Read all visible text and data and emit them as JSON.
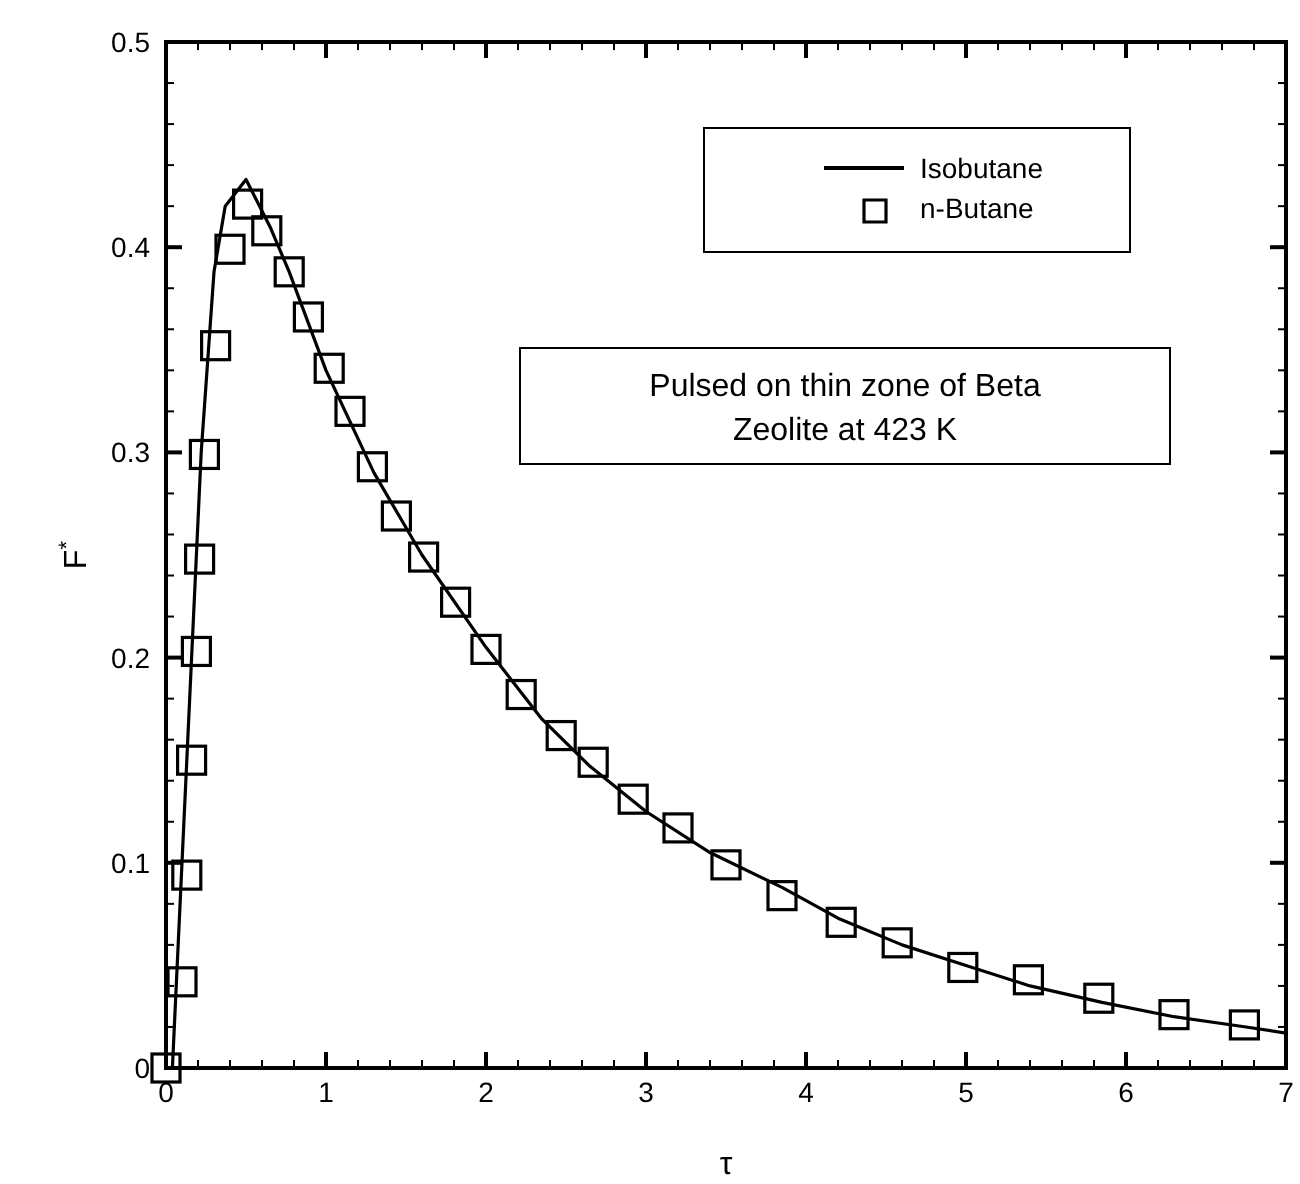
{
  "chart_data": {
    "type": "line",
    "xlabel": "τ",
    "ylabel": "F$^{*}$",
    "xlim": [
      0,
      7
    ],
    "ylim": [
      0,
      0.5
    ],
    "xticks": [
      0,
      {
        "value": 0.2,
        "label": null
      },
      {
        "value": 0.4,
        "label": null
      },
      {
        "value": 0.6,
        "label": null
      },
      {
        "value": 0.8,
        "label": null
      },
      1,
      {
        "value": 1.2,
        "label": null
      },
      {
        "value": 1.4,
        "label": null
      },
      {
        "value": 1.6,
        "label": null
      },
      {
        "value": 1.8,
        "label": null
      },
      2,
      {
        "value": 2.2,
        "label": null
      },
      {
        "value": 2.4,
        "label": null
      },
      {
        "value": 2.6,
        "label": null
      },
      {
        "value": 2.8,
        "label": null
      },
      3,
      {
        "value": 3.2,
        "label": null
      },
      {
        "value": 3.4,
        "label": null
      },
      {
        "value": 3.6,
        "label": null
      },
      {
        "value": 3.8,
        "label": null
      },
      4,
      {
        "value": 4.2,
        "label": null
      },
      {
        "value": 4.4,
        "label": null
      },
      {
        "value": 4.6,
        "label": null
      },
      {
        "value": 4.8,
        "label": null
      },
      5,
      {
        "value": 5.2,
        "label": null
      },
      {
        "value": 5.4,
        "label": null
      },
      {
        "value": 5.6,
        "label": null
      },
      {
        "value": 5.8,
        "label": null
      },
      6,
      {
        "value": 6.2,
        "label": null
      },
      {
        "value": 6.4,
        "label": null
      },
      {
        "value": 6.6,
        "label": null
      },
      {
        "value": 6.8,
        "label": null
      },
      7
    ],
    "yticks": [
      0,
      {
        "value": 0.02,
        "label": null
      },
      {
        "value": 0.04,
        "label": null
      },
      {
        "value": 0.06,
        "label": null
      },
      {
        "value": 0.08,
        "label": null
      },
      0.1,
      {
        "value": 0.12,
        "label": null
      },
      {
        "value": 0.14,
        "label": null
      },
      {
        "value": 0.16,
        "label": null
      },
      {
        "value": 0.18,
        "label": null
      },
      0.2,
      {
        "value": 0.22,
        "label": null
      },
      {
        "value": 0.24,
        "label": null
      },
      {
        "value": 0.26,
        "label": null
      },
      {
        "value": 0.28,
        "label": null
      },
      0.3,
      {
        "value": 0.32,
        "label": null
      },
      {
        "value": 0.34,
        "label": null
      },
      {
        "value": 0.36,
        "label": null
      },
      {
        "value": 0.38,
        "label": null
      },
      0.4,
      {
        "value": 0.42,
        "label": null
      },
      {
        "value": 0.44,
        "label": null
      },
      {
        "value": 0.46,
        "label": null
      },
      {
        "value": 0.48,
        "label": null
      },
      0.5
    ],
    "legend": "top right",
    "grid": false,
    "annotations": [
      "Pulsed on thin zone of Beta\nZeolite at 423 K"
    ],
    "series": [
      {
        "name": "Isobutane",
        "color": "#000000",
        "line_style": "solid",
        "marker": "none",
        "x": [
          0.04,
          0.1,
          0.16,
          0.22,
          0.3,
          0.37,
          0.5,
          0.65,
          0.77,
          1.0,
          1.3,
          1.6,
          2.0,
          2.35,
          2.65,
          3.0,
          3.4,
          3.85,
          4.2,
          4.6,
          5.0,
          5.4,
          5.85,
          6.3,
          6.75,
          7.0
        ],
        "values": [
          0,
          0.1,
          0.2,
          0.3,
          0.388,
          0.42,
          0.433,
          0.41,
          0.388,
          0.34,
          0.29,
          0.25,
          0.205,
          0.17,
          0.147,
          0.125,
          0.105,
          0.088,
          0.073,
          0.06,
          0.05,
          0.04,
          0.032,
          0.025,
          0.02,
          0.017
        ]
      },
      {
        "name": "n-Butane",
        "type": "scatter",
        "color": "#000000",
        "marker": "square",
        "x": [
          0,
          0.1,
          0.13,
          0.16,
          0.19,
          0.21,
          0.24,
          0.31,
          0.4,
          0.51,
          0.63,
          0.77,
          0.89,
          1.02,
          1.15,
          1.29,
          1.44,
          1.61,
          1.81,
          2.0,
          2.22,
          2.47,
          2.67,
          2.92,
          3.2,
          3.5,
          3.85,
          4.22,
          4.57,
          4.98,
          5.39,
          5.83,
          6.3,
          6.74
        ],
        "values": [
          0,
          0.042,
          0.094,
          0.15,
          0.203,
          0.248,
          0.299,
          0.352,
          0.399,
          0.421,
          0.408,
          0.388,
          0.366,
          0.341,
          0.32,
          0.293,
          0.269,
          0.249,
          0.227,
          0.204,
          0.182,
          0.162,
          0.149,
          0.131,
          0.117,
          0.099,
          0.084,
          0.071,
          0.061,
          0.049,
          0.043,
          0.034,
          0.026,
          0.021
        ]
      }
    ]
  }
}
